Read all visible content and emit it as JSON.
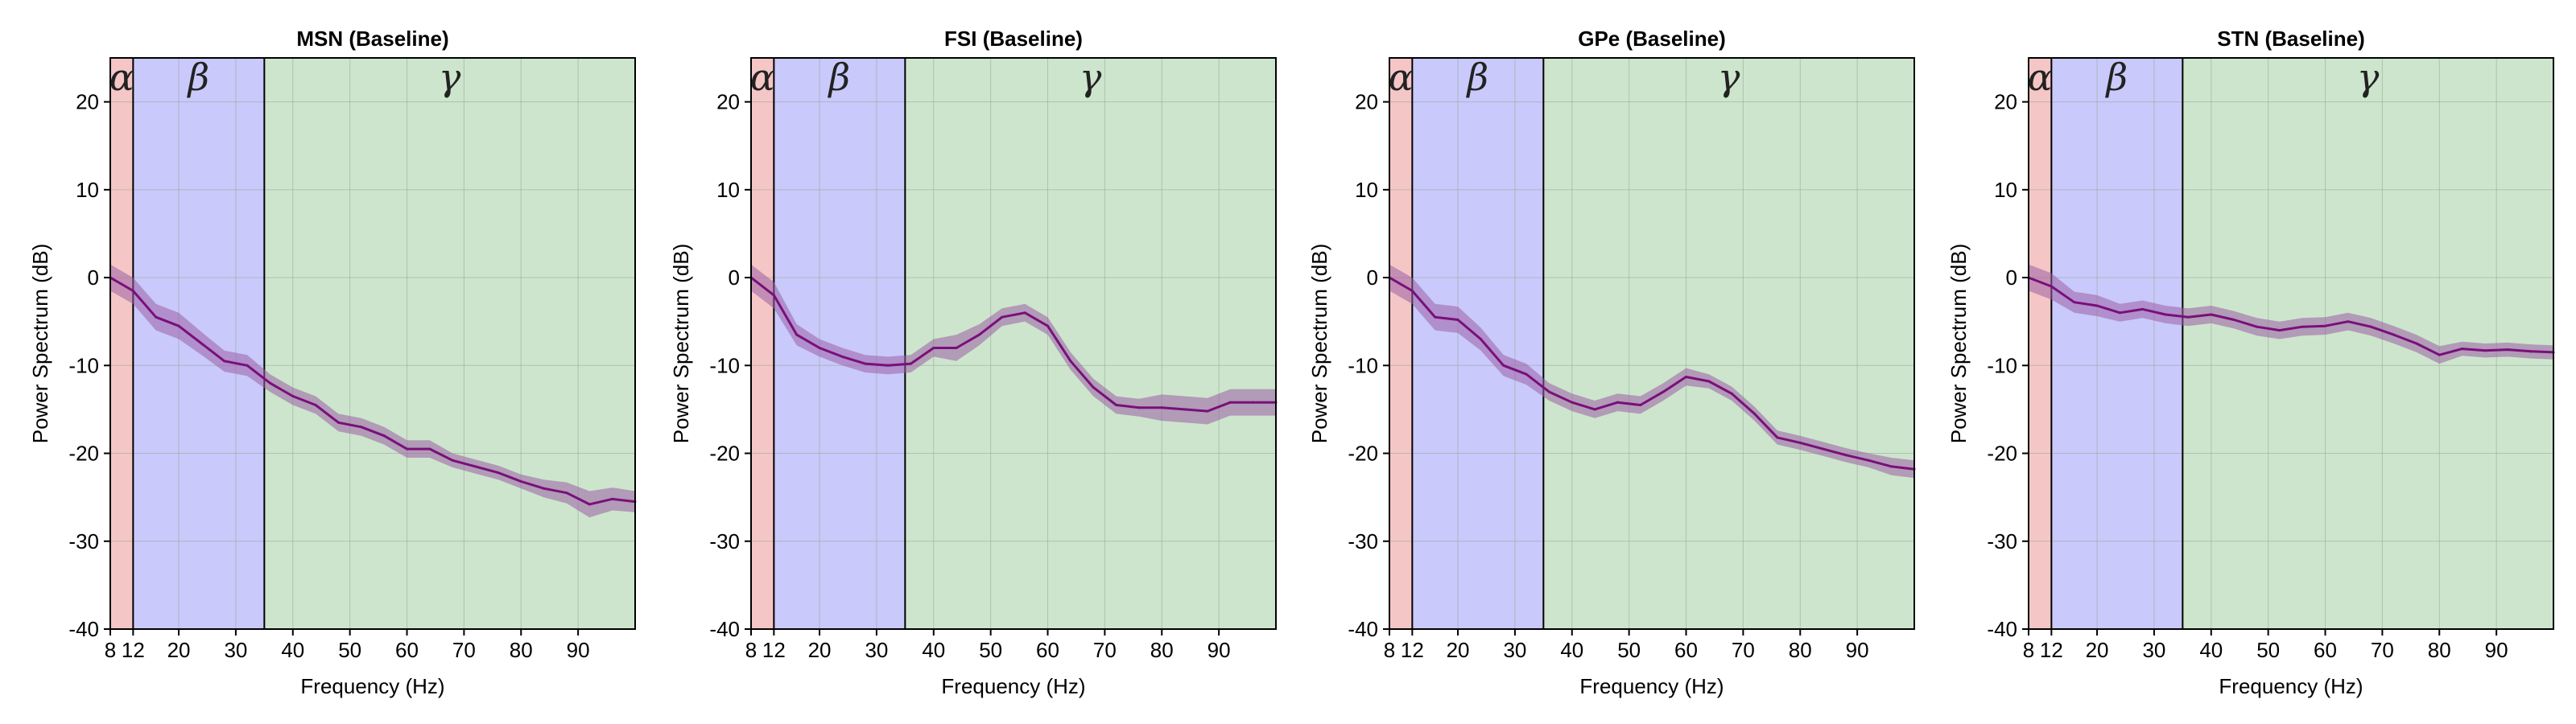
{
  "colors": {
    "alpha_band": "#f5c6c6",
    "beta_band": "#c9c9fb",
    "gamma_band": "#cde5cd",
    "line": "#7a0f7a",
    "ci_fill": "#9a5ea6",
    "grid": "#9aaa9a"
  },
  "chart_data": [
    {
      "type": "line",
      "title": "MSN (Baseline)",
      "xlabel": "Frequency (Hz)",
      "ylabel": "Power Spectrum (dB)",
      "xlim": [
        8,
        100
      ],
      "ylim": [
        -40,
        25
      ],
      "xticks": [
        8,
        12,
        20,
        30,
        40,
        50,
        60,
        70,
        80,
        90
      ],
      "yticks": [
        -40,
        -30,
        -20,
        -10,
        0,
        10,
        20
      ],
      "grid": true,
      "bands": [
        {
          "label": "α",
          "from": 8,
          "to": 12
        },
        {
          "label": "β",
          "from": 12,
          "to": 35
        },
        {
          "label": "γ",
          "from": 35,
          "to": 100
        }
      ],
      "x": [
        8,
        12,
        16,
        20,
        24,
        28,
        32,
        36,
        40,
        44,
        48,
        52,
        56,
        60,
        64,
        68,
        72,
        76,
        80,
        84,
        88,
        92,
        96,
        100
      ],
      "y": [
        0,
        -1.5,
        -4.5,
        -5.5,
        -7.5,
        -9.5,
        -10,
        -12,
        -13.5,
        -14.5,
        -16.5,
        -17,
        -18,
        -19.5,
        -19.5,
        -20.8,
        -21.5,
        -22.2,
        -23.2,
        -24,
        -24.5,
        -25.8,
        -25.2,
        -25.5
      ],
      "ci": [
        1.5,
        1.5,
        1.5,
        1.5,
        1.3,
        1.2,
        1.2,
        1,
        1,
        1,
        1,
        1,
        1,
        1,
        1,
        0.8,
        0.8,
        0.8,
        0.8,
        1,
        1.2,
        1.5,
        1.3,
        1.2
      ]
    },
    {
      "type": "line",
      "title": "FSI (Baseline)",
      "xlabel": "Frequency (Hz)",
      "ylabel": "Power Spectrum (dB)",
      "xlim": [
        8,
        100
      ],
      "ylim": [
        -40,
        25
      ],
      "xticks": [
        8,
        12,
        20,
        30,
        40,
        50,
        60,
        70,
        80,
        90
      ],
      "yticks": [
        -40,
        -30,
        -20,
        -10,
        0,
        10,
        20
      ],
      "grid": true,
      "bands": [
        {
          "label": "α",
          "from": 8,
          "to": 12
        },
        {
          "label": "β",
          "from": 12,
          "to": 35
        },
        {
          "label": "γ",
          "from": 35,
          "to": 100
        }
      ],
      "x": [
        8,
        12,
        16,
        20,
        24,
        28,
        32,
        36,
        40,
        44,
        48,
        52,
        56,
        60,
        64,
        68,
        72,
        76,
        80,
        84,
        88,
        92,
        96,
        100
      ],
      "y": [
        0,
        -2,
        -6.5,
        -8,
        -9,
        -9.8,
        -10,
        -9.8,
        -8,
        -8,
        -6.5,
        -4.5,
        -4,
        -5.5,
        -9.5,
        -12.5,
        -14.5,
        -14.8,
        -14.8,
        -15,
        -15.2,
        -14.2,
        -14.2,
        -14.2
      ],
      "ci": [
        1.5,
        1.5,
        1.2,
        1,
        1,
        1,
        1,
        1,
        1,
        1.5,
        1.2,
        1,
        1,
        1,
        1,
        1,
        1,
        1,
        1.5,
        1.5,
        1.5,
        1.5,
        1.5,
        1.5
      ]
    },
    {
      "type": "line",
      "title": "GPe (Baseline)",
      "xlabel": "Frequency (Hz)",
      "ylabel": "Power Spectrum (dB)",
      "xlim": [
        8,
        100
      ],
      "ylim": [
        -40,
        25
      ],
      "xticks": [
        8,
        12,
        20,
        30,
        40,
        50,
        60,
        70,
        80,
        90
      ],
      "yticks": [
        -40,
        -30,
        -20,
        -10,
        0,
        10,
        20
      ],
      "grid": true,
      "bands": [
        {
          "label": "α",
          "from": 8,
          "to": 12
        },
        {
          "label": "β",
          "from": 12,
          "to": 35
        },
        {
          "label": "γ",
          "from": 35,
          "to": 100
        }
      ],
      "x": [
        8,
        12,
        16,
        20,
        24,
        28,
        32,
        36,
        40,
        44,
        48,
        52,
        56,
        60,
        64,
        68,
        72,
        76,
        80,
        84,
        88,
        92,
        96,
        100
      ],
      "y": [
        0,
        -1.5,
        -4.5,
        -4.8,
        -7,
        -10,
        -11,
        -13,
        -14.2,
        -15,
        -14.2,
        -14.5,
        -13,
        -11.3,
        -11.8,
        -13.2,
        -15.5,
        -18.2,
        -18.8,
        -19.5,
        -20.2,
        -20.8,
        -21.5,
        -21.8
      ],
      "ci": [
        1.5,
        1.5,
        1.5,
        1.5,
        1.3,
        1.2,
        1.2,
        1,
        1,
        1,
        1,
        1,
        1,
        1,
        0.8,
        0.8,
        0.8,
        0.8,
        0.8,
        0.8,
        0.8,
        0.8,
        1,
        1
      ]
    },
    {
      "type": "line",
      "title": "STN (Baseline)",
      "xlabel": "Frequency (Hz)",
      "ylabel": "Power Spectrum (dB)",
      "xlim": [
        8,
        100
      ],
      "ylim": [
        -40,
        25
      ],
      "xticks": [
        8,
        12,
        20,
        30,
        40,
        50,
        60,
        70,
        80,
        90
      ],
      "yticks": [
        -40,
        -30,
        -20,
        -10,
        0,
        10,
        20
      ],
      "grid": true,
      "bands": [
        {
          "label": "α",
          "from": 8,
          "to": 12
        },
        {
          "label": "β",
          "from": 12,
          "to": 35
        },
        {
          "label": "γ",
          "from": 35,
          "to": 100
        }
      ],
      "x": [
        8,
        12,
        16,
        20,
        24,
        28,
        32,
        36,
        40,
        44,
        48,
        52,
        56,
        60,
        64,
        68,
        72,
        76,
        80,
        84,
        88,
        92,
        96,
        100
      ],
      "y": [
        0,
        -1,
        -2.8,
        -3.2,
        -4,
        -3.6,
        -4.2,
        -4.5,
        -4.2,
        -4.8,
        -5.6,
        -6,
        -5.6,
        -5.5,
        -5,
        -5.6,
        -6.5,
        -7.5,
        -8.8,
        -8.1,
        -8.3,
        -8.2,
        -8.4,
        -8.5
      ],
      "ci": [
        1.5,
        1.5,
        1.2,
        1.2,
        1,
        1,
        1,
        1,
        1,
        1,
        1,
        1,
        1,
        1,
        1,
        1,
        1,
        1,
        1,
        0.8,
        0.8,
        0.8,
        0.8,
        0.8
      ]
    }
  ]
}
